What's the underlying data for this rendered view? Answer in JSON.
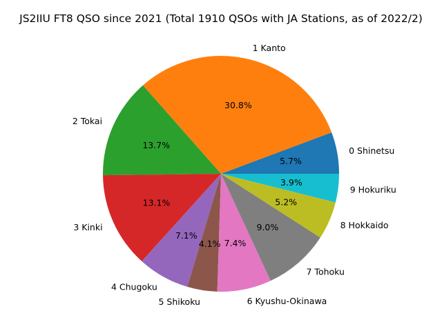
{
  "chart_data": {
    "type": "pie",
    "title": "JS2IIU FT8 QSO since 2021 (Total 1910 QSOs with JA Stations, as of 2022/2)",
    "slices": [
      {
        "label": "0 Shinetsu",
        "percent": 5.7,
        "pct_label": "5.7%",
        "color": "#1f77b4"
      },
      {
        "label": "1 Kanto",
        "percent": 30.8,
        "pct_label": "30.8%",
        "color": "#ff7f0e"
      },
      {
        "label": "2 Tokai",
        "percent": 13.7,
        "pct_label": "13.7%",
        "color": "#2ca02c"
      },
      {
        "label": "3 Kinki",
        "percent": 13.1,
        "pct_label": "13.1%",
        "color": "#d62728"
      },
      {
        "label": "4 Chugoku",
        "percent": 7.1,
        "pct_label": "7.1%",
        "color": "#9467bd"
      },
      {
        "label": "5 Shikoku",
        "percent": 4.1,
        "pct_label": "4.1%",
        "color": "#8c564b"
      },
      {
        "label": "6 Kyushu-Okinawa",
        "percent": 7.4,
        "pct_label": "7.4%",
        "color": "#e377c2"
      },
      {
        "label": "7 Tohoku",
        "percent": 9.0,
        "pct_label": "9.0%",
        "color": "#7f7f7f"
      },
      {
        "label": "8 Hokkaido",
        "percent": 5.2,
        "pct_label": "5.2%",
        "color": "#bcbd22"
      },
      {
        "label": "9 Hokuriku",
        "percent": 3.9,
        "pct_label": "3.9%",
        "color": "#17becf"
      }
    ],
    "start_angle_deg": 0,
    "direction": "counterclockwise"
  }
}
